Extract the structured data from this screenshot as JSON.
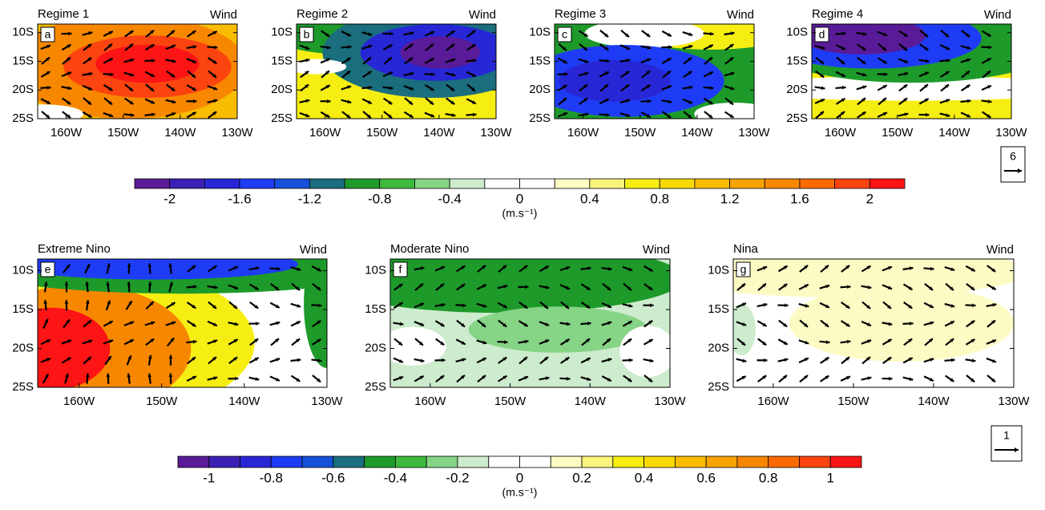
{
  "panels": [
    {
      "title": "Regime 1",
      "label": "Wind",
      "letter": "a"
    },
    {
      "title": "Regime 2",
      "label": "Wind",
      "letter": "b"
    },
    {
      "title": "Regime 3",
      "label": "Wind",
      "letter": "c"
    },
    {
      "title": "Regime 4",
      "label": "Wind",
      "letter": "d"
    },
    {
      "title": "Extreme Nino",
      "label": "Wind",
      "letter": "e"
    },
    {
      "title": "Moderate Nino",
      "label": "Wind",
      "letter": "f"
    },
    {
      "title": "Nina",
      "label": "Wind",
      "letter": "g"
    }
  ],
  "axes": {
    "xlim": [
      -165,
      -130
    ],
    "ylim": [
      -25,
      -8.5
    ],
    "xticks": [
      {
        "value": -160,
        "label": "160W"
      },
      {
        "value": -150,
        "label": "150W"
      },
      {
        "value": -140,
        "label": "140W"
      },
      {
        "value": -130,
        "label": "130W"
      }
    ],
    "yticks": [
      {
        "value": -10,
        "label": "10S"
      },
      {
        "value": -15,
        "label": "15S"
      },
      {
        "value": -20,
        "label": "20S"
      },
      {
        "value": -25,
        "label": "25S"
      }
    ]
  },
  "colorbars": [
    {
      "lim": [
        -2.2,
        2.2
      ],
      "ticks": [
        -2,
        -1.6,
        -1.2,
        -0.8,
        -0.4,
        0,
        0.4,
        0.8,
        1.2,
        1.6,
        2
      ],
      "unit": "(m.s⁻¹)"
    },
    {
      "lim": [
        -1.1,
        1.1
      ],
      "ticks": [
        -1,
        -0.8,
        -0.6,
        -0.4,
        -0.2,
        0,
        0.2,
        0.4,
        0.6,
        0.8,
        1
      ],
      "unit": "(m.s⁻¹)"
    }
  ],
  "colors": [
    "#5a1b98",
    "#3c1fb4",
    "#2727d6",
    "#1e3cf5",
    "#1551d8",
    "#1a6e7e",
    "#1d9a2a",
    "#3dba3d",
    "#86d486",
    "#cdebcd",
    "#ffffff",
    "#ffffff",
    "#fdfbc4",
    "#faf47c",
    "#f6ee13",
    "#f9da00",
    "#f8bc00",
    "#f7a300",
    "#f88700",
    "#fa6a00",
    "#fb4410",
    "#fd1414"
  ],
  "reference_vectors": [
    "6",
    "1"
  ]
}
